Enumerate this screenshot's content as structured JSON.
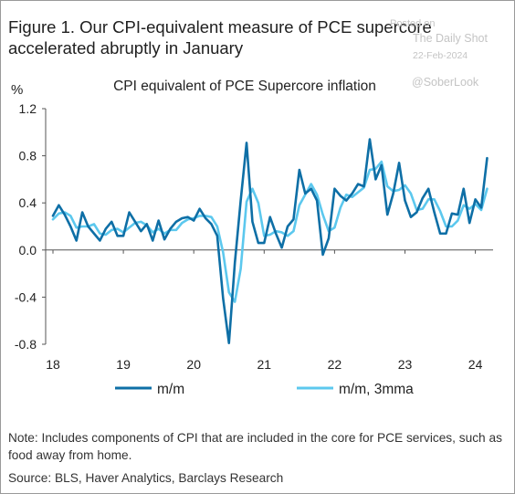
{
  "figure": {
    "title": "Figure 1. Our CPI-equivalent measure of PCE supercore accelerated abruptly in January",
    "note": "Note: Includes components of CPI that are included in the core for PCE services, such as food away from home.",
    "source": "Source: BLS, Haver Analytics, Barclays Research"
  },
  "watermark": {
    "posted": "Posted on",
    "site": "The Daily Shot",
    "date": "22-Feb-2024",
    "handle": "@SoberLook"
  },
  "chart_data": {
    "type": "line",
    "title": "CPI equivalent of PCE Supercore inflation",
    "ylabel": "%",
    "xlabel": "",
    "ylim": [
      -0.8,
      1.2
    ],
    "y_ticks": [
      "1.2",
      "0.8",
      "0.4",
      "0.0",
      "-0.4",
      "-0.8"
    ],
    "x_ticks": [
      "18",
      "19",
      "20",
      "21",
      "22",
      "23",
      "24"
    ],
    "x_range_years": [
      2018,
      2024.083
    ],
    "grid": false,
    "legend_position": "bottom",
    "series": [
      {
        "name": "m/m",
        "color": "#0e6fa6",
        "start": "2018-01",
        "values": [
          0.29,
          0.38,
          0.3,
          0.2,
          0.08,
          0.32,
          0.2,
          0.14,
          0.08,
          0.18,
          0.24,
          0.12,
          0.12,
          0.32,
          0.24,
          0.16,
          0.22,
          0.08,
          0.25,
          0.09,
          0.18,
          0.24,
          0.27,
          0.28,
          0.25,
          0.35,
          0.27,
          0.22,
          0.12,
          -0.41,
          -0.79,
          -0.11,
          0.42,
          0.91,
          0.24,
          0.06,
          0.06,
          0.28,
          0.14,
          0.02,
          0.2,
          0.26,
          0.68,
          0.48,
          0.52,
          0.42,
          -0.04,
          0.1,
          0.52,
          0.46,
          0.42,
          0.48,
          0.56,
          0.54,
          0.94,
          0.6,
          0.72,
          0.3,
          0.48,
          0.74,
          0.42,
          0.28,
          0.32,
          0.44,
          0.52,
          0.32,
          0.14,
          0.14,
          0.31,
          0.3,
          0.52,
          0.23,
          0.43,
          0.36,
          0.78
        ]
      },
      {
        "name": "m/m, 3mma",
        "color": "#5cc8ee",
        "start": "2018-01",
        "values": [
          0.26,
          0.31,
          0.32,
          0.29,
          0.19,
          0.2,
          0.2,
          0.22,
          0.14,
          0.13,
          0.17,
          0.18,
          0.15,
          0.19,
          0.23,
          0.24,
          0.21,
          0.15,
          0.18,
          0.14,
          0.17,
          0.17,
          0.23,
          0.26,
          0.27,
          0.29,
          0.29,
          0.28,
          0.2,
          -0.02,
          -0.36,
          -0.44,
          -0.16,
          0.41,
          0.52,
          0.4,
          0.12,
          0.13,
          0.16,
          0.15,
          0.12,
          0.16,
          0.38,
          0.47,
          0.56,
          0.47,
          0.3,
          0.16,
          0.19,
          0.36,
          0.47,
          0.45,
          0.49,
          0.53,
          0.68,
          0.69,
          0.75,
          0.54,
          0.5,
          0.51,
          0.55,
          0.48,
          0.34,
          0.35,
          0.43,
          0.43,
          0.33,
          0.2,
          0.2,
          0.25,
          0.38,
          0.35,
          0.39,
          0.34,
          0.52
        ]
      }
    ]
  }
}
